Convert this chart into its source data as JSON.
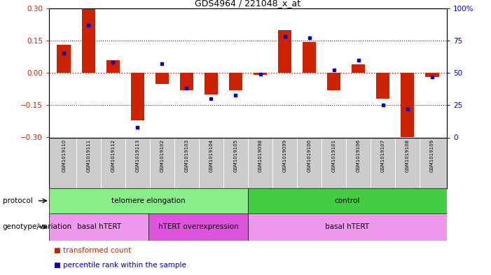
{
  "title": "GDS4964 / 221048_x_at",
  "samples": [
    "GSM1019110",
    "GSM1019111",
    "GSM1019112",
    "GSM1019113",
    "GSM1019102",
    "GSM1019103",
    "GSM1019104",
    "GSM1019105",
    "GSM1019098",
    "GSM1019099",
    "GSM1019100",
    "GSM1019101",
    "GSM1019106",
    "GSM1019107",
    "GSM1019108",
    "GSM1019109"
  ],
  "bar_values": [
    0.13,
    0.3,
    0.06,
    -0.22,
    -0.05,
    -0.08,
    -0.1,
    -0.08,
    -0.01,
    0.2,
    0.145,
    -0.08,
    0.04,
    -0.12,
    -0.3,
    -0.02
  ],
  "dot_values": [
    65,
    87,
    58,
    8,
    57,
    38,
    30,
    33,
    49,
    78,
    77,
    52,
    60,
    25,
    22,
    47
  ],
  "bar_color": "#cc2200",
  "dot_color": "#0000cc",
  "ylim_left": [
    -0.3,
    0.3
  ],
  "ylim_right": [
    0,
    100
  ],
  "yticks_left": [
    -0.3,
    -0.15,
    0.0,
    0.15,
    0.3
  ],
  "yticks_right": [
    0,
    25,
    50,
    75,
    100
  ],
  "ytick_labels_right": [
    "0",
    "25",
    "50",
    "75",
    "100%"
  ],
  "zero_line_color": "#dd0000",
  "dotted_line_color": "#333333",
  "dotted_lines_at": [
    -0.15,
    0.15
  ],
  "protocol_groups": [
    {
      "label": "telomere elongation",
      "start": 0,
      "end": 7,
      "color": "#88ee88"
    },
    {
      "label": "control",
      "start": 8,
      "end": 15,
      "color": "#44cc44"
    }
  ],
  "genotype_groups": [
    {
      "label": "basal hTERT",
      "start": 0,
      "end": 3,
      "color": "#ee99ee"
    },
    {
      "label": "hTERT overexpression",
      "start": 4,
      "end": 7,
      "color": "#dd55dd"
    },
    {
      "label": "basal hTERT",
      "start": 8,
      "end": 15,
      "color": "#ee99ee"
    }
  ],
  "legend_items": [
    {
      "label": "transformed count",
      "color": "#cc2200"
    },
    {
      "label": "percentile rank within the sample",
      "color": "#0000cc"
    }
  ],
  "bg_color": "#ffffff",
  "sample_bg_color": "#cccccc",
  "protocol_label": "protocol",
  "genotype_label": "genotype/variation"
}
